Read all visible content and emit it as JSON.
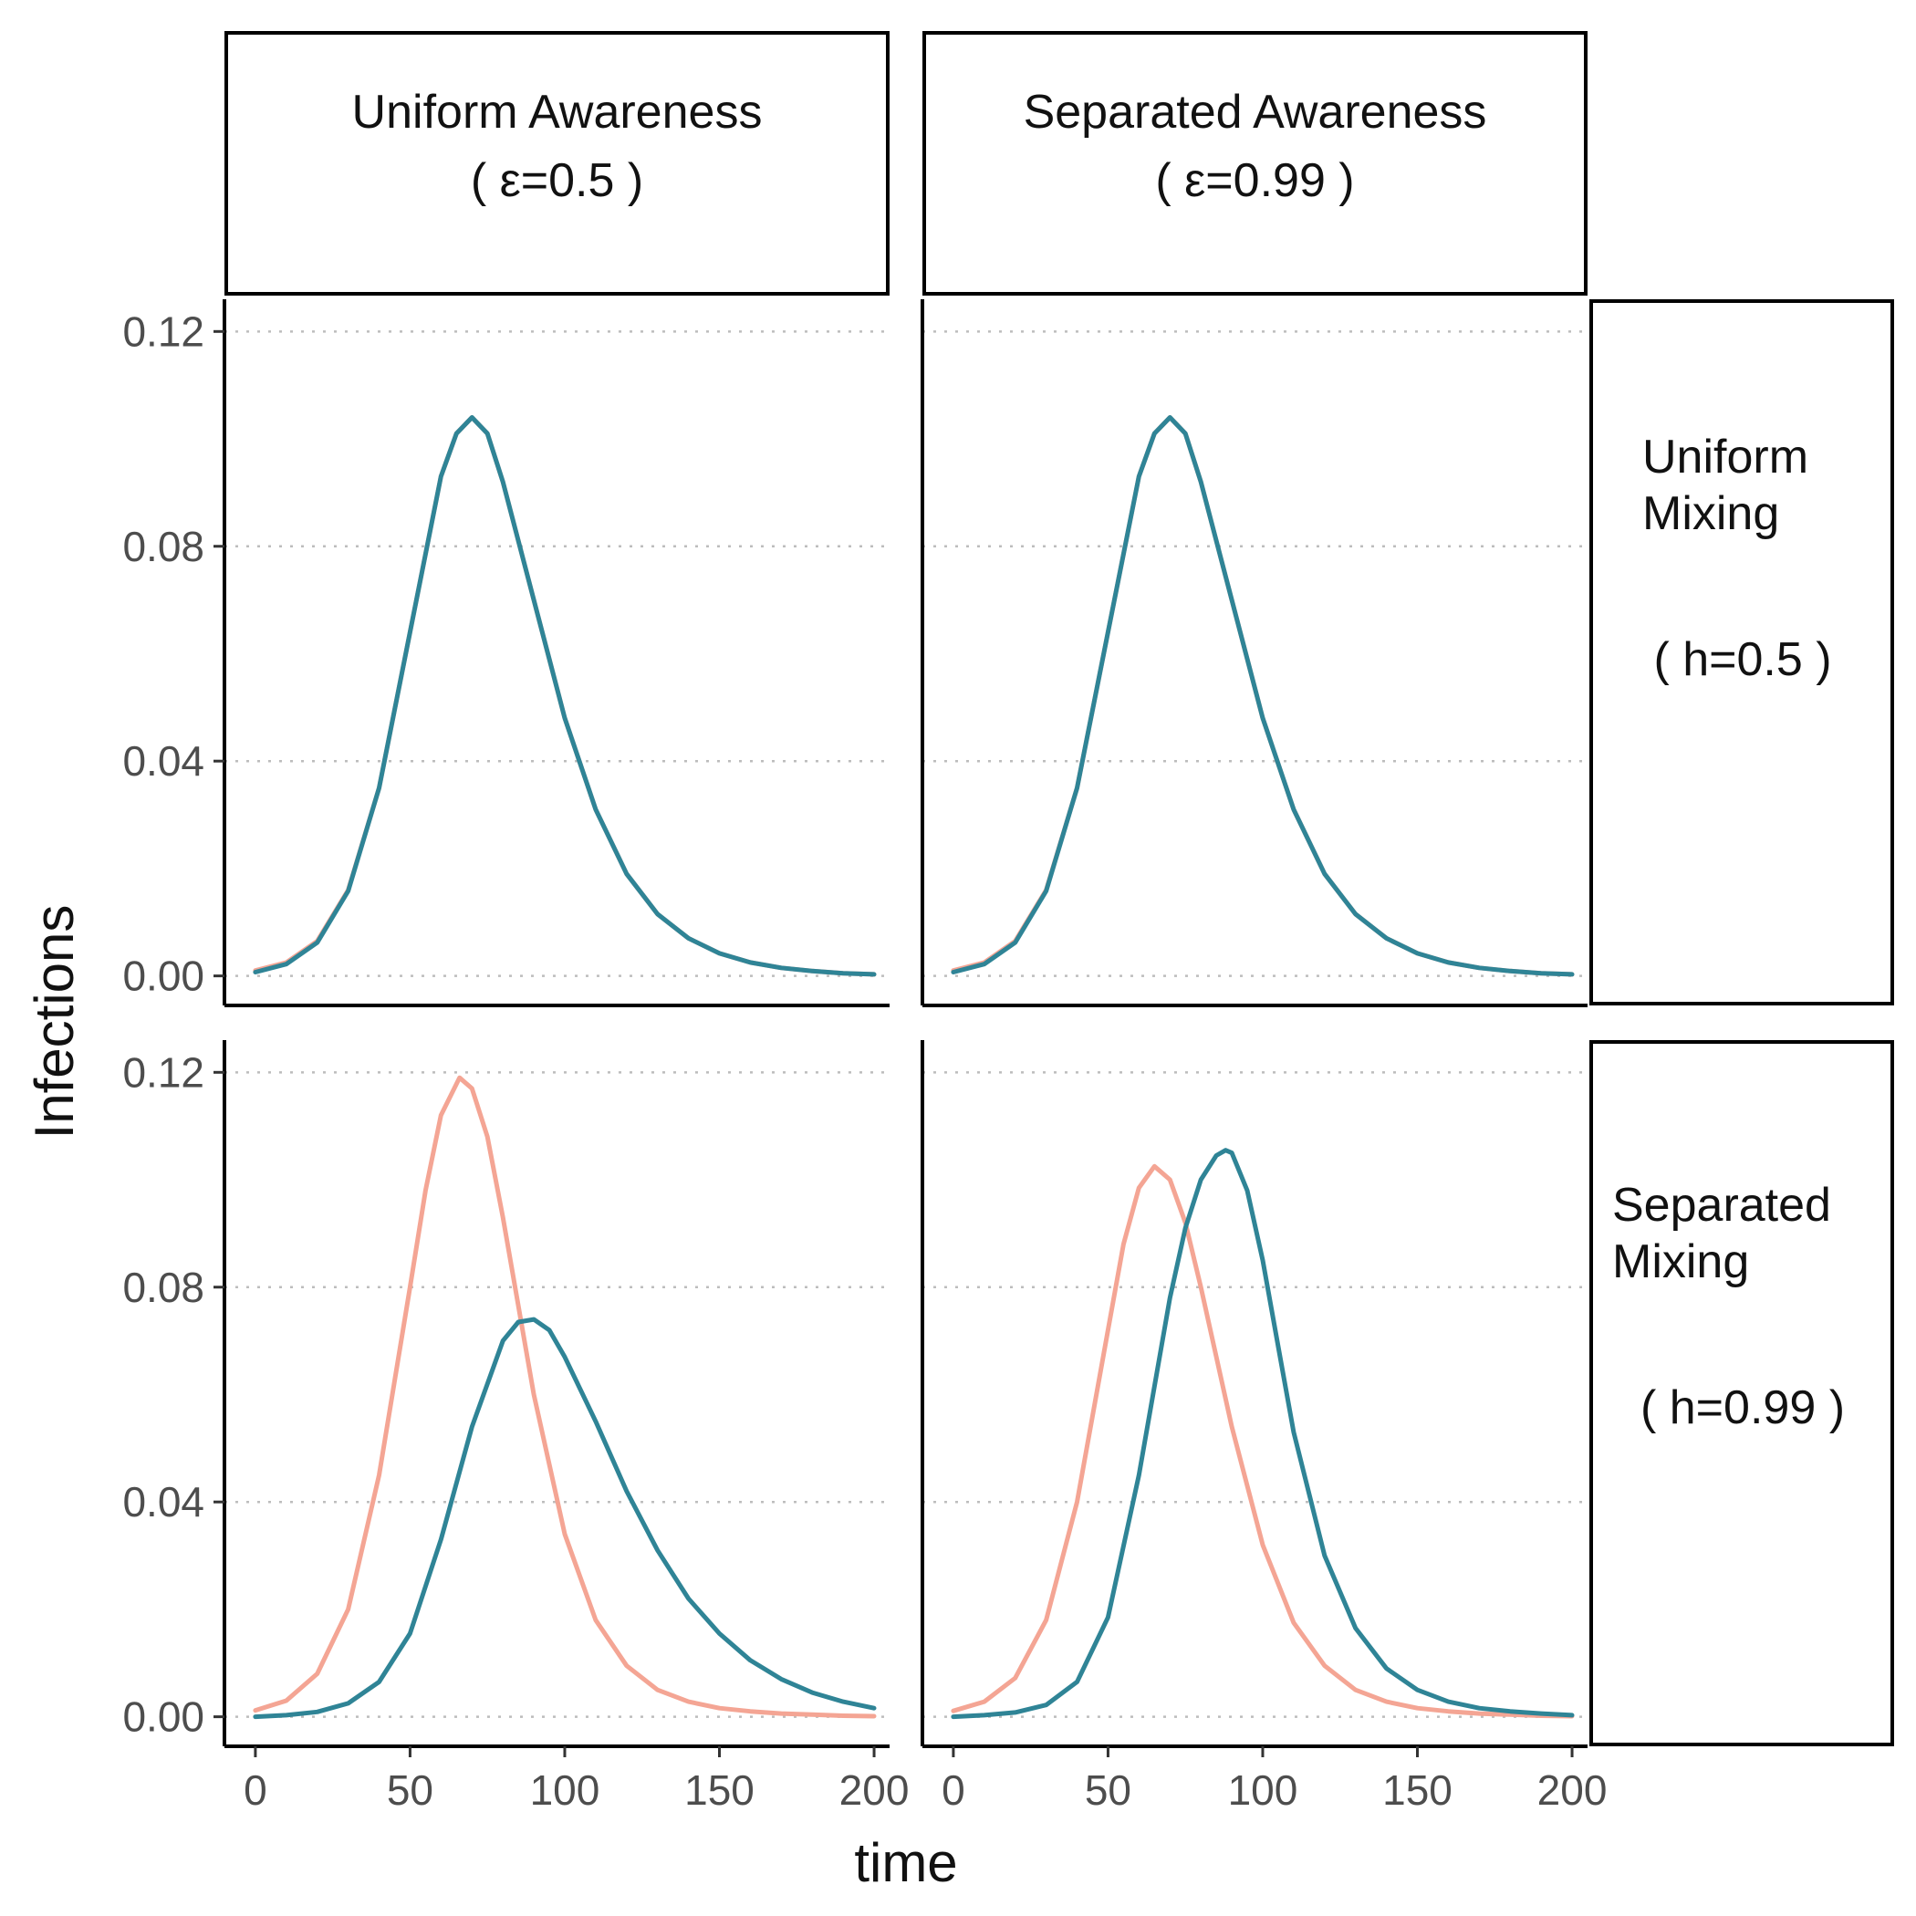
{
  "chart_data": {
    "type": "line",
    "xlabel": "time",
    "ylabel": "Infections",
    "xlim": [
      -10,
      205
    ],
    "ylim": [
      -0.0055,
      0.126
    ],
    "x_ticks": [
      0,
      50,
      100,
      150,
      200
    ],
    "x_tick_labels": [
      "0",
      "50",
      "100",
      "150",
      "200"
    ],
    "y_ticks": [
      0.0,
      0.04,
      0.08,
      0.12
    ],
    "y_tick_labels": [
      "0.00",
      "0.04",
      "0.08",
      "0.12"
    ],
    "grid": "horizontal dotted",
    "legend": "none",
    "colors": {
      "salmon": "#F4A594",
      "teal": "#2F8496"
    },
    "columns": [
      {
        "title": "Uniform Awareness",
        "param": "( ε=0.5 )"
      },
      {
        "title": "Separated Awareness",
        "param": "( ε=0.99 )"
      }
    ],
    "rows": [
      {
        "title_line1": "Uniform",
        "title_line2": "Mixing",
        "param": "( h=0.5 )"
      },
      {
        "title_line1": "Separated",
        "title_line2": "Mixing",
        "param": "( h=0.99 )"
      }
    ],
    "panels": [
      {
        "row": 0,
        "col": 0,
        "series": [
          {
            "color": "salmon",
            "x": [
              0,
              10,
              20,
              30,
              40,
              50,
              60,
              65,
              70,
              75,
              80,
              90,
              100,
              110,
              120,
              130,
              140,
              150,
              160,
              170,
              180,
              190,
              200
            ],
            "y": [
              0.001,
              0.0025,
              0.0065,
              0.016,
              0.035,
              0.064,
              0.093,
              0.101,
              0.104,
              0.101,
              0.092,
              0.07,
              0.048,
              0.031,
              0.019,
              0.0115,
              0.007,
              0.0042,
              0.0025,
              0.0015,
              0.0009,
              0.0005,
              0.0003
            ]
          },
          {
            "color": "teal",
            "x": [
              0,
              10,
              20,
              30,
              40,
              50,
              60,
              65,
              70,
              75,
              80,
              90,
              100,
              110,
              120,
              130,
              140,
              150,
              160,
              170,
              180,
              190,
              200
            ],
            "y": [
              0.0007,
              0.0022,
              0.0062,
              0.0158,
              0.035,
              0.064,
              0.093,
              0.101,
              0.104,
              0.101,
              0.092,
              0.07,
              0.048,
              0.031,
              0.019,
              0.0115,
              0.007,
              0.0042,
              0.0025,
              0.0015,
              0.0009,
              0.0005,
              0.0003
            ]
          }
        ]
      },
      {
        "row": 0,
        "col": 1,
        "series": [
          {
            "color": "salmon",
            "x": [
              0,
              10,
              20,
              30,
              40,
              50,
              60,
              65,
              70,
              75,
              80,
              90,
              100,
              110,
              120,
              130,
              140,
              150,
              160,
              170,
              180,
              190,
              200
            ],
            "y": [
              0.001,
              0.0025,
              0.0065,
              0.016,
              0.035,
              0.064,
              0.093,
              0.101,
              0.104,
              0.101,
              0.092,
              0.07,
              0.048,
              0.031,
              0.019,
              0.0115,
              0.007,
              0.0042,
              0.0025,
              0.0015,
              0.0009,
              0.0005,
              0.0003
            ]
          },
          {
            "color": "teal",
            "x": [
              0,
              10,
              20,
              30,
              40,
              50,
              60,
              65,
              70,
              75,
              80,
              90,
              100,
              110,
              120,
              130,
              140,
              150,
              160,
              170,
              180,
              190,
              200
            ],
            "y": [
              0.0007,
              0.0022,
              0.0062,
              0.0158,
              0.035,
              0.064,
              0.093,
              0.101,
              0.104,
              0.101,
              0.092,
              0.07,
              0.048,
              0.031,
              0.019,
              0.0115,
              0.007,
              0.0042,
              0.0025,
              0.0015,
              0.0009,
              0.0005,
              0.0003
            ]
          }
        ]
      },
      {
        "row": 1,
        "col": 0,
        "series": [
          {
            "color": "salmon",
            "x": [
              0,
              10,
              20,
              30,
              40,
              50,
              55,
              60,
              66,
              70,
              75,
              80,
              90,
              100,
              110,
              120,
              130,
              140,
              150,
              160,
              170,
              180,
              190,
              200
            ],
            "y": [
              0.0012,
              0.003,
              0.008,
              0.02,
              0.045,
              0.08,
              0.098,
              0.112,
              0.119,
              0.117,
              0.108,
              0.093,
              0.06,
              0.034,
              0.018,
              0.0095,
              0.005,
              0.0028,
              0.0016,
              0.001,
              0.0006,
              0.0004,
              0.0002,
              0.0001
            ]
          },
          {
            "color": "teal",
            "x": [
              0,
              10,
              20,
              30,
              40,
              50,
              60,
              70,
              80,
              85,
              90,
              95,
              100,
              110,
              120,
              130,
              140,
              150,
              160,
              170,
              180,
              190,
              200
            ],
            "y": [
              0.0,
              0.0003,
              0.0009,
              0.0025,
              0.0065,
              0.0155,
              0.033,
              0.054,
              0.07,
              0.0735,
              0.074,
              0.072,
              0.067,
              0.055,
              0.042,
              0.031,
              0.022,
              0.0155,
              0.0105,
              0.007,
              0.0045,
              0.0028,
              0.0016
            ]
          }
        ]
      },
      {
        "row": 1,
        "col": 1,
        "series": [
          {
            "color": "salmon",
            "x": [
              0,
              10,
              20,
              30,
              40,
              50,
              55,
              60,
              65,
              70,
              75,
              80,
              90,
              100,
              110,
              120,
              130,
              140,
              150,
              160,
              170,
              180,
              190,
              200
            ],
            "y": [
              0.0011,
              0.0028,
              0.0072,
              0.018,
              0.04,
              0.072,
              0.088,
              0.0985,
              0.1025,
              0.1,
              0.092,
              0.08,
              0.054,
              0.032,
              0.0175,
              0.0095,
              0.005,
              0.0028,
              0.0016,
              0.001,
              0.0006,
              0.0004,
              0.0002,
              0.0001
            ]
          },
          {
            "color": "teal",
            "x": [
              0,
              10,
              20,
              30,
              40,
              50,
              60,
              70,
              75,
              80,
              85,
              88,
              90,
              95,
              100,
              105,
              110,
              120,
              130,
              140,
              150,
              160,
              170,
              180,
              190,
              200
            ],
            "y": [
              0.0,
              0.0003,
              0.0008,
              0.0022,
              0.0065,
              0.0185,
              0.045,
              0.078,
              0.091,
              0.1,
              0.1045,
              0.1055,
              0.105,
              0.098,
              0.085,
              0.069,
              0.053,
              0.03,
              0.0165,
              0.009,
              0.005,
              0.0028,
              0.0016,
              0.001,
              0.0006,
              0.0003
            ]
          }
        ]
      }
    ]
  }
}
